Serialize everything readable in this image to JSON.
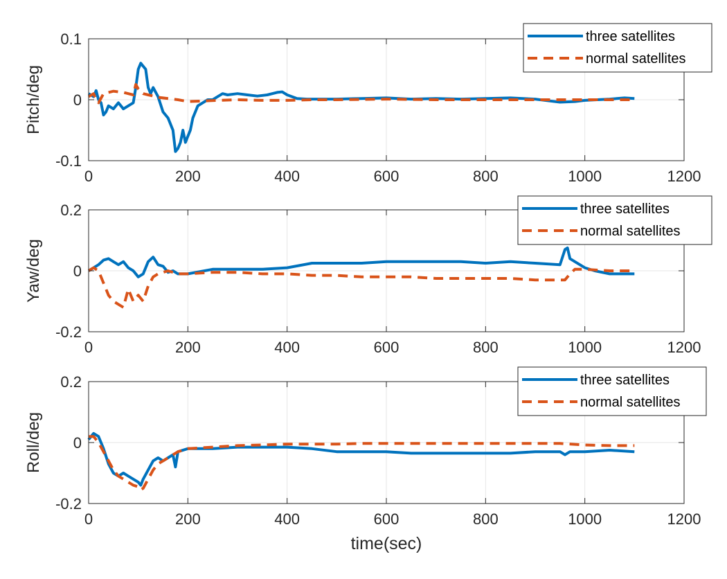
{
  "chart_data": [
    {
      "type": "line",
      "title": "",
      "xlabel": "",
      "ylabel": "Pitch/deg",
      "xlim": [
        0,
        1200
      ],
      "ylim": [
        -0.1,
        0.1
      ],
      "xticks": [
        0,
        200,
        400,
        600,
        800,
        1000,
        1200
      ],
      "yticks": [
        -0.1,
        0,
        0.1
      ],
      "xtick_labels": [
        "0",
        "200",
        "400",
        "600",
        "800",
        "1000",
        "1200"
      ],
      "ytick_labels": [
        "-0.1",
        "0",
        "0.1"
      ],
      "grid": true,
      "legend_position": "top-right",
      "series": [
        {
          "name": "three satellites",
          "color": "#0072BD",
          "style": "solid",
          "x": [
            0,
            10,
            15,
            20,
            25,
            30,
            35,
            40,
            50,
            60,
            70,
            80,
            90,
            95,
            100,
            105,
            110,
            115,
            120,
            125,
            130,
            140,
            150,
            160,
            170,
            175,
            180,
            185,
            190,
            195,
            200,
            205,
            210,
            215,
            220,
            230,
            240,
            250,
            260,
            270,
            280,
            300,
            320,
            340,
            360,
            380,
            390,
            400,
            420,
            440,
            460,
            500,
            550,
            600,
            650,
            700,
            750,
            800,
            850,
            900,
            930,
            950,
            980,
            1000,
            1050,
            1080,
            1100
          ],
          "y": [
            0.01,
            0.005,
            0.015,
            0.0,
            -0.005,
            -0.025,
            -0.02,
            -0.01,
            -0.015,
            -0.005,
            -0.015,
            -0.01,
            -0.005,
            0.02,
            0.05,
            0.06,
            0.055,
            0.05,
            0.02,
            0.01,
            0.02,
            0.005,
            -0.02,
            -0.03,
            -0.05,
            -0.085,
            -0.08,
            -0.07,
            -0.05,
            -0.07,
            -0.06,
            -0.05,
            -0.03,
            -0.02,
            -0.01,
            -0.005,
            0.0,
            0.0,
            0.005,
            0.01,
            0.008,
            0.01,
            0.008,
            0.006,
            0.008,
            0.012,
            0.013,
            0.008,
            0.002,
            0.001,
            0.001,
            0.001,
            0.002,
            0.003,
            0.001,
            0.002,
            0.001,
            0.002,
            0.003,
            0.001,
            -0.002,
            -0.004,
            -0.003,
            -0.001,
            0.001,
            0.003,
            0.002
          ]
        },
        {
          "name": "normal satellites",
          "color": "#D95319",
          "style": "dashed",
          "x": [
            0,
            10,
            15,
            20,
            30,
            40,
            50,
            60,
            70,
            80,
            90,
            95,
            100,
            110,
            120,
            130,
            140,
            150,
            160,
            180,
            200,
            230,
            260,
            300,
            350,
            400,
            450,
            500,
            600,
            700,
            800,
            900,
            950,
            1000,
            1050,
            1100
          ],
          "y": [
            0.005,
            0.01,
            0.0,
            -0.005,
            0.01,
            0.012,
            0.014,
            0.013,
            0.012,
            0.01,
            0.008,
            0.025,
            0.018,
            0.01,
            0.008,
            0.006,
            0.004,
            0.003,
            0.002,
            0.0,
            -0.003,
            -0.002,
            -0.001,
            0.0,
            -0.001,
            -0.001,
            0.0,
            0.0,
            0.001,
            0.0,
            0.0,
            0.0,
            0.0,
            0.0,
            0.0,
            0.0
          ]
        }
      ]
    },
    {
      "type": "line",
      "title": "",
      "xlabel": "",
      "ylabel": "Yaw/deg",
      "xlim": [
        0,
        1200
      ],
      "ylim": [
        -0.2,
        0.2
      ],
      "xticks": [
        0,
        200,
        400,
        600,
        800,
        1000,
        1200
      ],
      "yticks": [
        -0.2,
        0,
        0.2
      ],
      "xtick_labels": [
        "0",
        "200",
        "400",
        "600",
        "800",
        "1000",
        "1200"
      ],
      "ytick_labels": [
        "-0.2",
        "0",
        "0.2"
      ],
      "grid": true,
      "legend_position": "top-right",
      "series": [
        {
          "name": "three satellites",
          "color": "#0072BD",
          "style": "solid",
          "x": [
            0,
            10,
            20,
            30,
            40,
            50,
            60,
            70,
            80,
            90,
            100,
            110,
            120,
            130,
            140,
            150,
            160,
            170,
            180,
            200,
            250,
            300,
            350,
            400,
            450,
            500,
            550,
            600,
            650,
            700,
            750,
            800,
            850,
            900,
            950,
            960,
            965,
            970,
            980,
            1000,
            1020,
            1050,
            1080,
            1100
          ],
          "y": [
            0.0,
            0.01,
            0.02,
            0.035,
            0.04,
            0.03,
            0.02,
            0.03,
            0.01,
            0.0,
            -0.02,
            -0.01,
            0.03,
            0.045,
            0.02,
            0.015,
            -0.005,
            0.0,
            -0.01,
            -0.01,
            0.005,
            0.005,
            0.005,
            0.01,
            0.025,
            0.025,
            0.025,
            0.03,
            0.03,
            0.03,
            0.03,
            0.025,
            0.03,
            0.025,
            0.02,
            0.07,
            0.075,
            0.04,
            0.03,
            0.01,
            0.0,
            -0.01,
            -0.01,
            -0.01
          ]
        },
        {
          "name": "normal satellites",
          "color": "#D95319",
          "style": "dashed",
          "x": [
            0,
            10,
            20,
            30,
            40,
            50,
            60,
            70,
            80,
            90,
            100,
            110,
            120,
            130,
            140,
            150,
            160,
            170,
            180,
            200,
            250,
            300,
            350,
            400,
            450,
            500,
            550,
            600,
            650,
            700,
            750,
            800,
            850,
            900,
            950,
            960,
            970,
            980,
            1000,
            1050,
            1100
          ],
          "y": [
            0.0,
            0.01,
            0.0,
            -0.04,
            -0.08,
            -0.1,
            -0.11,
            -0.12,
            -0.06,
            -0.1,
            -0.08,
            -0.1,
            -0.05,
            -0.02,
            -0.01,
            -0.005,
            0.0,
            -0.005,
            -0.01,
            -0.01,
            -0.005,
            -0.005,
            -0.01,
            -0.01,
            -0.015,
            -0.015,
            -0.02,
            -0.02,
            -0.02,
            -0.025,
            -0.025,
            -0.025,
            -0.025,
            -0.03,
            -0.03,
            -0.03,
            -0.01,
            0.005,
            0.005,
            0.0,
            0.0
          ]
        }
      ]
    },
    {
      "type": "line",
      "title": "",
      "xlabel": "time(sec)",
      "ylabel": "Roll/deg",
      "xlim": [
        0,
        1200
      ],
      "ylim": [
        -0.2,
        0.2
      ],
      "xticks": [
        0,
        200,
        400,
        600,
        800,
        1000,
        1200
      ],
      "yticks": [
        -0.2,
        0,
        0.2
      ],
      "xtick_labels": [
        "0",
        "200",
        "400",
        "600",
        "800",
        "1000",
        "1200"
      ],
      "ytick_labels": [
        "-0.2",
        "0",
        "0.2"
      ],
      "grid": true,
      "legend_position": "top-right",
      "series": [
        {
          "name": "three satellites",
          "color": "#0072BD",
          "style": "solid",
          "x": [
            0,
            10,
            20,
            30,
            40,
            50,
            60,
            70,
            80,
            90,
            100,
            105,
            110,
            120,
            130,
            140,
            150,
            160,
            170,
            175,
            180,
            200,
            250,
            300,
            350,
            400,
            450,
            500,
            550,
            600,
            650,
            700,
            750,
            800,
            850,
            900,
            950,
            960,
            970,
            1000,
            1050,
            1100
          ],
          "y": [
            0.01,
            0.03,
            0.02,
            -0.02,
            -0.07,
            -0.1,
            -0.11,
            -0.1,
            -0.11,
            -0.12,
            -0.13,
            -0.14,
            -0.12,
            -0.09,
            -0.06,
            -0.05,
            -0.06,
            -0.05,
            -0.04,
            -0.08,
            -0.03,
            -0.02,
            -0.02,
            -0.015,
            -0.015,
            -0.015,
            -0.02,
            -0.03,
            -0.03,
            -0.03,
            -0.035,
            -0.035,
            -0.035,
            -0.035,
            -0.035,
            -0.03,
            -0.03,
            -0.04,
            -0.03,
            -0.03,
            -0.025,
            -0.03
          ]
        },
        {
          "name": "normal satellites",
          "color": "#D95319",
          "style": "dashed",
          "x": [
            0,
            10,
            20,
            30,
            40,
            50,
            60,
            70,
            80,
            90,
            100,
            105,
            110,
            120,
            130,
            140,
            150,
            160,
            170,
            180,
            200,
            250,
            300,
            350,
            400,
            450,
            500,
            550,
            600,
            650,
            700,
            750,
            800,
            850,
            900,
            950,
            1000,
            1050,
            1100
          ],
          "y": [
            0.02,
            0.02,
            0.0,
            -0.03,
            -0.06,
            -0.09,
            -0.11,
            -0.12,
            -0.13,
            -0.14,
            -0.145,
            -0.155,
            -0.15,
            -0.12,
            -0.09,
            -0.07,
            -0.06,
            -0.05,
            -0.04,
            -0.03,
            -0.02,
            -0.015,
            -0.01,
            -0.008,
            -0.005,
            -0.005,
            -0.005,
            -0.003,
            -0.003,
            -0.003,
            -0.003,
            -0.003,
            -0.003,
            -0.003,
            -0.003,
            -0.003,
            -0.008,
            -0.01,
            -0.01
          ]
        }
      ]
    }
  ]
}
